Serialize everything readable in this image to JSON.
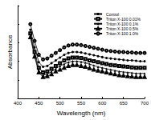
{
  "chart_data": {
    "type": "line",
    "x_label": "Wavelength (nm)",
    "y_label": "Absorbance",
    "x": [
      430,
      440,
      450,
      460,
      470,
      480,
      490,
      500,
      510,
      520,
      530,
      540,
      550,
      560,
      570,
      580,
      590,
      600,
      610,
      620,
      630,
      640,
      650,
      660,
      670,
      680,
      690,
      700
    ],
    "series": [
      {
        "name": "Control",
        "color": "#000000",
        "marker": "circle",
        "values": [
          0.74,
          0.55,
          0.39,
          0.34,
          0.35,
          0.38,
          0.41,
          0.44,
          0.47,
          0.49,
          0.5,
          0.5,
          0.495,
          0.485,
          0.475,
          0.465,
          0.455,
          0.445,
          0.435,
          0.43,
          0.425,
          0.42,
          0.415,
          0.41,
          0.41,
          0.405,
          0.4,
          0.4
        ]
      },
      {
        "name": "Triton X-100 0.01%",
        "color": "#000000",
        "marker": "square-open",
        "values": [
          0.7,
          0.5,
          0.33,
          0.28,
          0.29,
          0.32,
          0.35,
          0.38,
          0.41,
          0.43,
          0.44,
          0.44,
          0.435,
          0.425,
          0.41,
          0.4,
          0.39,
          0.38,
          0.37,
          0.36,
          0.355,
          0.35,
          0.345,
          0.34,
          0.335,
          0.33,
          0.33,
          0.33
        ]
      },
      {
        "name": "Triton X-100 0.1%",
        "color": "#000000",
        "marker": "triangle",
        "values": [
          0.68,
          0.47,
          0.3,
          0.25,
          0.26,
          0.29,
          0.32,
          0.35,
          0.37,
          0.39,
          0.4,
          0.4,
          0.395,
          0.385,
          0.37,
          0.355,
          0.34,
          0.33,
          0.32,
          0.31,
          0.3,
          0.29,
          0.285,
          0.28,
          0.275,
          0.27,
          0.27,
          0.27
        ]
      },
      {
        "name": "Triton X-100 0.5%",
        "color": "#000000",
        "marker": "triangle-open",
        "values": [
          0.66,
          0.45,
          0.28,
          0.23,
          0.24,
          0.26,
          0.29,
          0.31,
          0.33,
          0.35,
          0.36,
          0.36,
          0.35,
          0.34,
          0.325,
          0.31,
          0.3,
          0.29,
          0.28,
          0.27,
          0.26,
          0.25,
          0.245,
          0.24,
          0.235,
          0.23,
          0.23,
          0.23
        ]
      },
      {
        "name": "Triton X-100 1.0%",
        "color": "#000000",
        "marker": "circle-open",
        "values": [
          0.8,
          0.62,
          0.47,
          0.42,
          0.43,
          0.46,
          0.49,
          0.52,
          0.55,
          0.57,
          0.58,
          0.58,
          0.575,
          0.565,
          0.555,
          0.545,
          0.535,
          0.525,
          0.515,
          0.51,
          0.505,
          0.5,
          0.5,
          0.495,
          0.495,
          0.49,
          0.49,
          0.49
        ]
      }
    ],
    "xlim": [
      400,
      700
    ],
    "xticks": [
      400,
      450,
      500,
      550,
      600,
      650,
      700
    ],
    "ylim": [
      0,
      1
    ],
    "yticks": [
      0,
      0.2,
      0.4,
      0.6,
      0.8,
      1
    ],
    "tick_labels": "x",
    "legend": "upper right",
    "grid": false
  }
}
